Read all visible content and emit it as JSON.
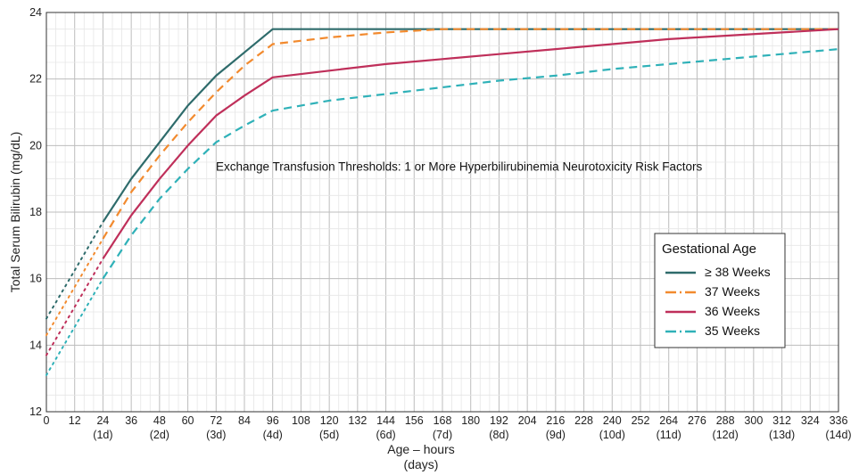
{
  "chart_data": {
    "type": "line",
    "title": "",
    "annotation": "Exchange Transfusion Thresholds:  1 or More Hyperbilirubinemia Neurotoxicity Risk Factors",
    "xlabel_line1": "Age – hours",
    "xlabel_line2": "(days)",
    "ylabel": "Total Serum Bilirubin (mg/dL)",
    "xlim": [
      0,
      336
    ],
    "ylim": [
      12,
      24
    ],
    "x_ticks": [
      0,
      12,
      24,
      36,
      48,
      60,
      72,
      84,
      96,
      108,
      120,
      132,
      144,
      156,
      168,
      180,
      192,
      204,
      216,
      228,
      240,
      252,
      264,
      276,
      288,
      300,
      312,
      324,
      336
    ],
    "x_tick_labels": [
      "0",
      "12",
      "24",
      "36",
      "48",
      "60",
      "72",
      "84",
      "96",
      "108",
      "120",
      "132",
      "144",
      "156",
      "168",
      "180",
      "192",
      "204",
      "216",
      "228",
      "240",
      "252",
      "264",
      "276",
      "288",
      "300",
      "312",
      "324",
      "336"
    ],
    "x_day_ticks": [
      24,
      48,
      72,
      96,
      120,
      144,
      168,
      192,
      216,
      240,
      264,
      288,
      312,
      336
    ],
    "x_day_labels": [
      "(1d)",
      "(2d)",
      "(3d)",
      "(4d)",
      "(5d)",
      "(6d)",
      "(7d)",
      "(8d)",
      "(9d)",
      "(10d)",
      "(11d)",
      "(12d)",
      "(13d)",
      "(14d)"
    ],
    "y_ticks": [
      12,
      14,
      16,
      18,
      20,
      22,
      24
    ],
    "y_tick_labels": [
      "12",
      "14",
      "16",
      "18",
      "20",
      "22",
      "24"
    ],
    "grid": true,
    "legend": {
      "title": "Gestational Age",
      "placement": "right"
    },
    "series": [
      {
        "name": "≥ 38 Weeks",
        "color": "#2e6b6b",
        "style": "solid",
        "x": [
          0,
          24,
          36,
          48,
          60,
          72,
          84,
          96,
          120,
          144,
          168,
          192,
          216,
          240,
          264,
          288,
          312,
          336
        ],
        "y": [
          14.8,
          17.7,
          19.0,
          20.1,
          21.2,
          22.1,
          22.8,
          23.5,
          23.5,
          23.5,
          23.5,
          23.5,
          23.5,
          23.5,
          23.5,
          23.5,
          23.5,
          23.5
        ]
      },
      {
        "name": "37 Weeks",
        "color": "#f28a2e",
        "style": "dashdot",
        "x": [
          0,
          24,
          36,
          48,
          60,
          72,
          84,
          96,
          120,
          144,
          168,
          192,
          216,
          240,
          264,
          288,
          312,
          336
        ],
        "y": [
          14.3,
          17.2,
          18.6,
          19.7,
          20.7,
          21.6,
          22.4,
          23.05,
          23.25,
          23.4,
          23.5,
          23.5,
          23.5,
          23.5,
          23.5,
          23.5,
          23.5,
          23.5
        ]
      },
      {
        "name": "36 Weeks",
        "color": "#bf2f5a",
        "style": "solid",
        "x": [
          0,
          24,
          36,
          48,
          60,
          72,
          84,
          96,
          120,
          144,
          168,
          192,
          216,
          240,
          264,
          288,
          312,
          336
        ],
        "y": [
          13.7,
          16.6,
          17.9,
          19.0,
          20.0,
          20.9,
          21.5,
          22.05,
          22.25,
          22.45,
          22.6,
          22.75,
          22.9,
          23.05,
          23.2,
          23.3,
          23.4,
          23.5
        ]
      },
      {
        "name": "35 Weeks",
        "color": "#2fb1b8",
        "style": "dashdot",
        "x": [
          0,
          24,
          36,
          48,
          60,
          72,
          84,
          96,
          120,
          144,
          168,
          192,
          216,
          240,
          264,
          288,
          312,
          336
        ],
        "y": [
          13.1,
          16.0,
          17.3,
          18.4,
          19.3,
          20.1,
          20.6,
          21.05,
          21.35,
          21.55,
          21.75,
          21.95,
          22.1,
          22.3,
          22.45,
          22.6,
          22.75,
          22.9
        ]
      }
    ]
  }
}
